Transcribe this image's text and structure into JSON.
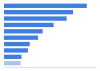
{
  "chart_data": {
    "type": "bar",
    "orientation": "horizontal",
    "categories": [
      null,
      null,
      null,
      null,
      null,
      null,
      null,
      null,
      null,
      null
    ],
    "values": [
      90,
      75,
      68,
      54,
      42,
      37,
      28,
      26,
      19,
      18
    ],
    "colors": [
      "#3f7fe0",
      "#3f7fe0",
      "#3f7fe0",
      "#3f7fe0",
      "#3f7fe0",
      "#3f7fe0",
      "#3f7fe0",
      "#3f7fe0",
      "#3f7fe0",
      "#a9c6f2"
    ],
    "xlim": [
      0,
      100
    ],
    "xticks": [],
    "grid": false,
    "tick_labels": false
  }
}
